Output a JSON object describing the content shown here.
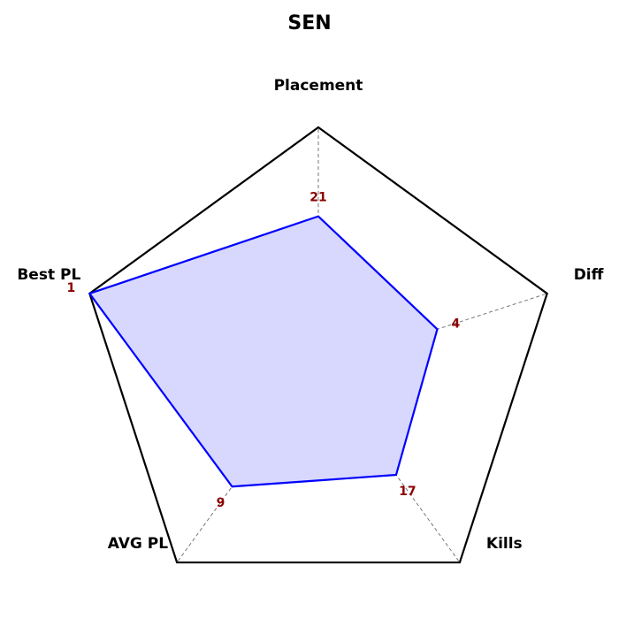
{
  "chart_data": {
    "type": "radar",
    "title": "SEN",
    "axes": [
      "Placement",
      "Diff",
      "Kills",
      "AVG PL",
      "Best PL"
    ],
    "series": [
      {
        "values": [
          0.63,
          0.52,
          0.55,
          0.61,
          1.0
        ],
        "value_labels": [
          "21",
          "4",
          "17",
          "9",
          "1"
        ],
        "color": "#0000ff",
        "fill": "#d8d8ff"
      }
    ],
    "rlim": [
      0,
      1
    ],
    "grid_levels": [
      0.5,
      1.0
    ],
    "grid": true,
    "outline_color": "#000000",
    "grid_color": "#777777",
    "value_label_color": "#8b0000"
  }
}
